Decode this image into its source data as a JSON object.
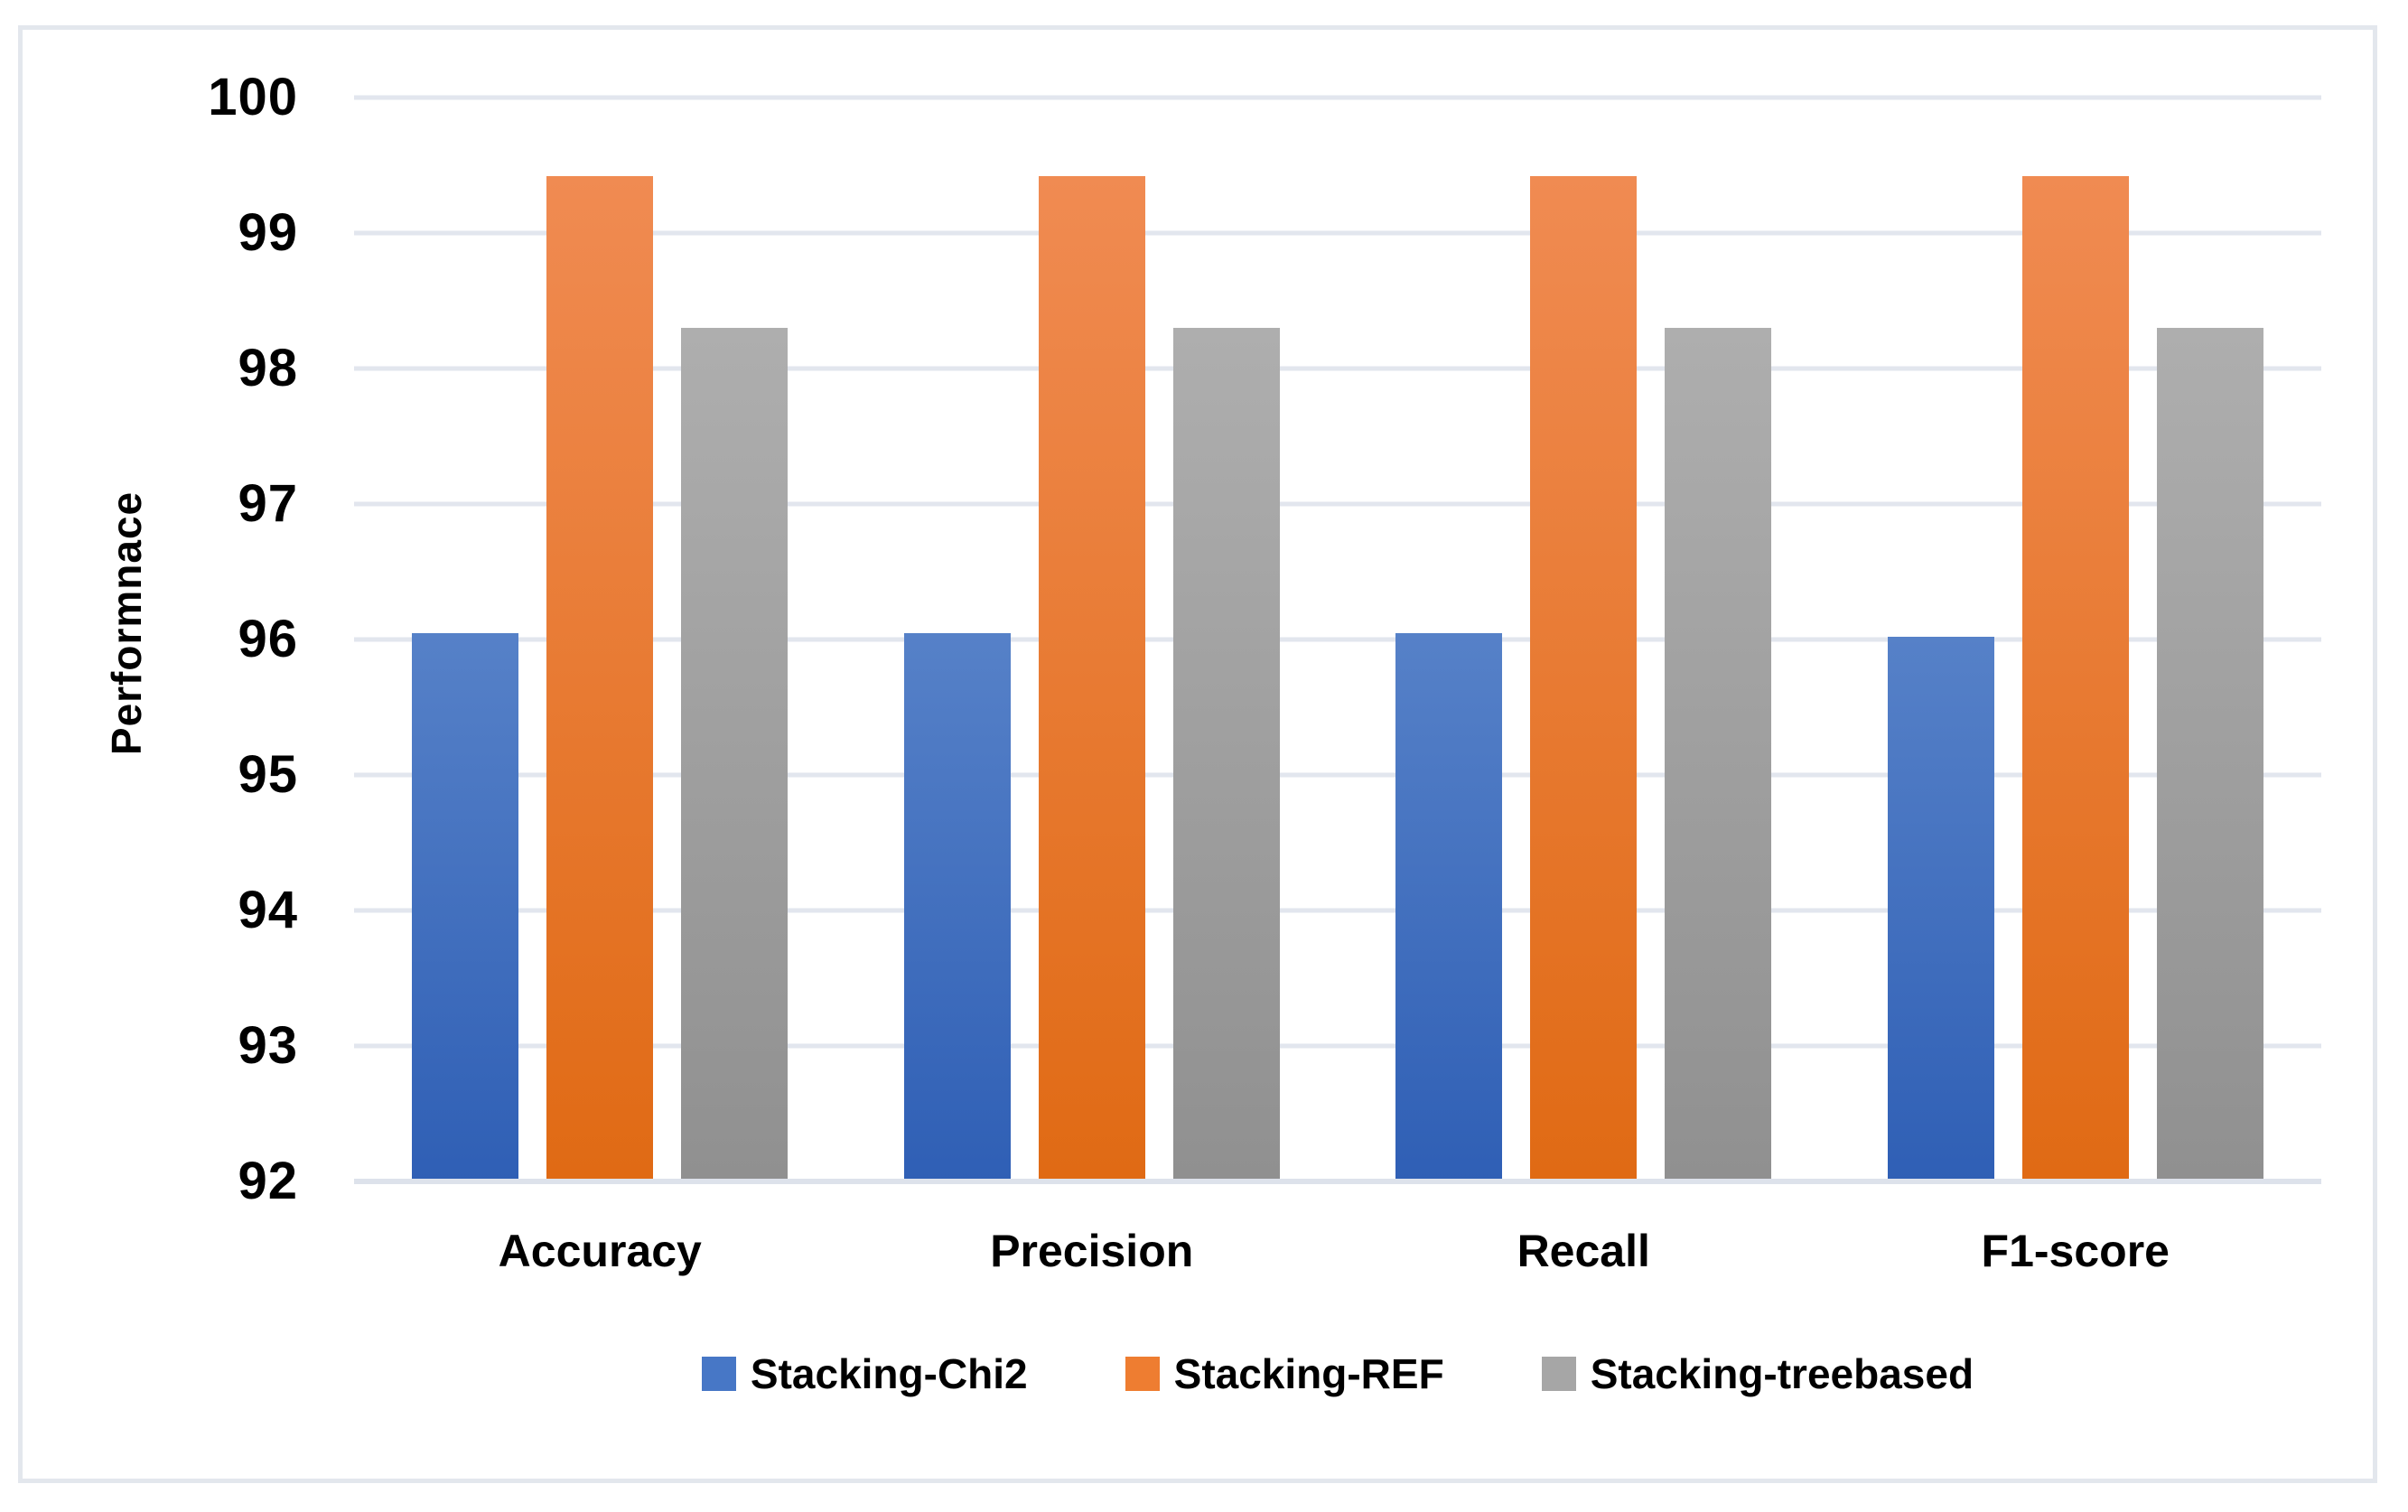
{
  "chart_data": {
    "type": "bar",
    "title": "",
    "xlabel": "",
    "ylabel": "Performnace",
    "categories": [
      "Accuracy",
      "Precision",
      "Recall",
      "F1-score"
    ],
    "series": [
      {
        "name": "Stacking-Chi2",
        "values": [
          96.05,
          96.05,
          96.05,
          96.02
        ],
        "color_top": "#5681C8",
        "color_bottom": "#2F5FB5",
        "legend_color": "#4777C6"
      },
      {
        "name": "Stacking-REF",
        "values": [
          99.42,
          99.42,
          99.42,
          99.42
        ],
        "color_top": "#F08B52",
        "color_bottom": "#E06A14",
        "legend_color": "#EE7D31"
      },
      {
        "name": "Stacking-treebased",
        "values": [
          98.3,
          98.3,
          98.3,
          98.3
        ],
        "color_top": "#AEAEAE",
        "color_bottom": "#909090",
        "legend_color": "#A6A6A6"
      }
    ],
    "ylim": [
      92,
      100
    ],
    "ytick_step": 1,
    "ytick_labels": [
      "100",
      "99",
      "98",
      "97",
      "96",
      "95",
      "94",
      "93",
      "92"
    ],
    "grid": true,
    "legend_position": "bottom",
    "colors": {
      "gridline": "#E2E6EE",
      "axis_line": "#DDE2EB",
      "frame_border": "#E3E7ED",
      "text": "#000000",
      "background": "#FFFFFF"
    }
  }
}
